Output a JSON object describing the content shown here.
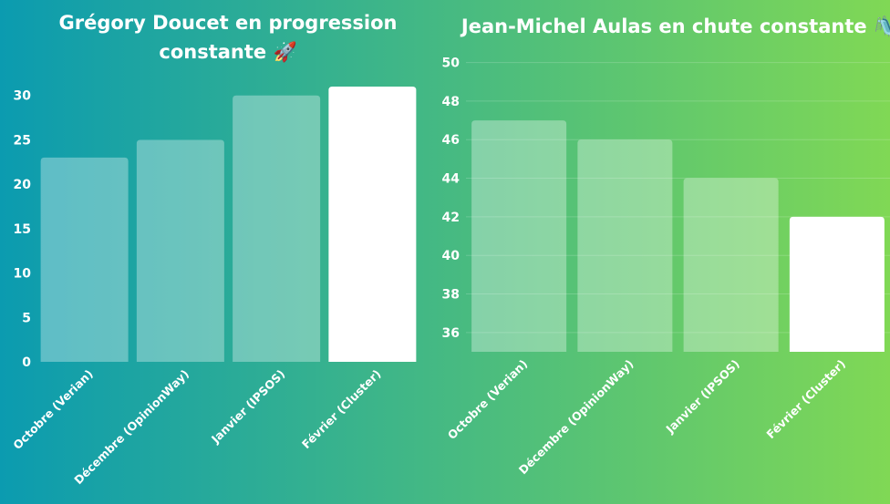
{
  "background": {
    "from": "#0b9bb0",
    "to": "#80d855"
  },
  "chart_data": [
    {
      "type": "bar",
      "title_lines": [
        "Grégory Doucet en progression",
        "constante 🚀"
      ],
      "categories": [
        "Octobre (Verian)",
        "Décembre (OpinionWay)",
        "Janvier (IPSOS)",
        "Février (Cluster)"
      ],
      "values": [
        23,
        25,
        30,
        31
      ],
      "ylim": [
        0,
        31
      ],
      "yticks": [
        0,
        5,
        10,
        15,
        20,
        25,
        30
      ],
      "grid": false,
      "highlight_index": 3,
      "colors": {
        "bar": "rgba(255,255,255,0.33)",
        "highlight": "#ffffff"
      }
    },
    {
      "type": "bar",
      "title_lines": [
        "Jean-Michel Aulas en chute constante 🛝"
      ],
      "categories": [
        "Octobre (Verian)",
        "Décembre (OpinionWay)",
        "Janvier (IPSOS)",
        "Février (Cluster)"
      ],
      "values": [
        47,
        46,
        44,
        42
      ],
      "ylim": [
        35,
        50.5
      ],
      "yticks": [
        36,
        38,
        40,
        42,
        44,
        46,
        48,
        50
      ],
      "grid": true,
      "highlight_index": 3,
      "colors": {
        "bar": "rgba(255,255,255,0.33)",
        "highlight": "#ffffff"
      }
    }
  ]
}
